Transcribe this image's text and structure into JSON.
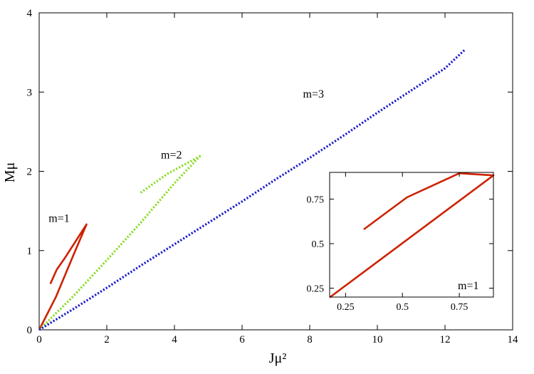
{
  "chart_data": {
    "type": "line",
    "xlabel": "Jμ²",
    "ylabel": "Mμ",
    "xlim": [
      0,
      14
    ],
    "ylim": [
      0,
      4
    ],
    "xticks": [
      0,
      2,
      4,
      6,
      8,
      10,
      12,
      14
    ],
    "yticks": [
      0,
      1,
      2,
      3,
      4
    ],
    "grid": false,
    "legend": "none",
    "series": [
      {
        "key": "m1",
        "color": "#cc2200",
        "style": "solid",
        "points": [
          [
            0.0,
            0.0
          ],
          [
            0.5,
            0.42
          ],
          [
            1.0,
            0.93
          ],
          [
            1.4,
            1.33
          ],
          [
            0.75,
            0.9
          ],
          [
            0.52,
            0.76
          ],
          [
            0.33,
            0.58
          ]
        ]
      },
      {
        "key": "m2",
        "color": "#88dd22",
        "style": "dotted",
        "points": [
          [
            0.0,
            0.0
          ],
          [
            1.0,
            0.42
          ],
          [
            2.0,
            0.88
          ],
          [
            3.0,
            1.35
          ],
          [
            4.0,
            1.85
          ],
          [
            4.75,
            2.19
          ],
          [
            3.8,
            1.97
          ],
          [
            3.0,
            1.73
          ]
        ]
      },
      {
        "key": "m3",
        "color": "#1a1acc",
        "style": "dotted",
        "points": [
          [
            0.0,
            0.0
          ],
          [
            1.0,
            0.26
          ],
          [
            2.0,
            0.53
          ],
          [
            3.0,
            0.81
          ],
          [
            4.0,
            1.08
          ],
          [
            5.0,
            1.35
          ],
          [
            6.0,
            1.62
          ],
          [
            7.0,
            1.9
          ],
          [
            8.0,
            2.17
          ],
          [
            9.0,
            2.45
          ],
          [
            10.0,
            2.74
          ],
          [
            11.0,
            3.02
          ],
          [
            12.0,
            3.3
          ],
          [
            12.6,
            3.54
          ]
        ]
      }
    ],
    "annotations": [
      {
        "text": "m=1",
        "x": 0.28,
        "y": 1.36
      },
      {
        "text": "m=2",
        "x": 3.6,
        "y": 2.16
      },
      {
        "text": "m=3",
        "x": 7.8,
        "y": 2.93
      }
    ],
    "inset": {
      "xlim": [
        0.18,
        0.9
      ],
      "ylim": [
        0.2,
        0.9
      ],
      "xticks": [
        0.25,
        0.5,
        0.75
      ],
      "yticks": [
        0.25,
        0.5,
        0.75
      ],
      "label": "m=1",
      "series": [
        {
          "key": "m1",
          "color": "#cc2200",
          "style": "solid",
          "points": [
            [
              0.18,
              0.198
            ],
            [
              0.9,
              0.883
            ],
            [
              0.75,
              0.895
            ],
            [
              0.52,
              0.76
            ],
            [
              0.33,
              0.58
            ]
          ]
        }
      ]
    }
  }
}
